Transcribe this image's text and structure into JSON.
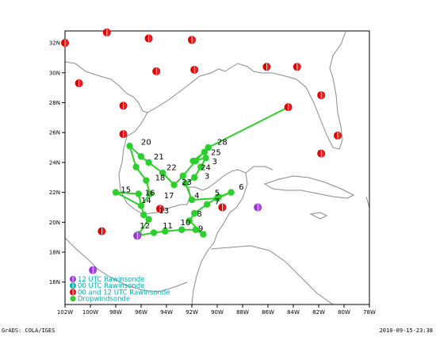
{
  "map": {
    "lon_ticks": [
      "102W",
      "100W",
      "98W",
      "96W",
      "94W",
      "92W",
      "90W",
      "88W",
      "86W",
      "84W",
      "82W",
      "80W",
      "78W"
    ],
    "lat_ticks": [
      "32N",
      "30N",
      "28N",
      "26N",
      "24N",
      "22N",
      "20N",
      "18N",
      "16N"
    ],
    "lon_range": [
      -102,
      -78
    ],
    "lat_range": [
      14.5,
      32.8
    ],
    "colors": {
      "land_outline": "#8a8a8a",
      "rawinsonde_12": "#9b30d8",
      "rawinsonde_00": "#00b0b0",
      "rawinsonde_both": "#e00000",
      "dropwindsonde": "#2ccf2c",
      "track": "#2ccf2c",
      "legend_text": "#00b0b0"
    },
    "legend": [
      {
        "label": "12 UTC Rawinsonde",
        "color": "#9b30d8",
        "type": "half"
      },
      {
        "label": "00 UTC Rawinsonde",
        "color": "#00b0b0",
        "type": "half"
      },
      {
        "label": "00 and 12 UTC Rawinsonde",
        "color": "#e00000",
        "type": "half"
      },
      {
        "label": "Dropwindsonde",
        "color": "#2ccf2c",
        "type": "full"
      }
    ],
    "rawinsondes": [
      {
        "lon": -102.0,
        "lat": 32.0,
        "type": "both"
      },
      {
        "lon": -98.7,
        "lat": 32.7,
        "type": "both"
      },
      {
        "lon": -95.4,
        "lat": 32.3,
        "type": "both"
      },
      {
        "lon": -92.0,
        "lat": 32.2,
        "type": "both"
      },
      {
        "lon": -100.9,
        "lat": 29.3,
        "type": "both"
      },
      {
        "lon": -94.8,
        "lat": 30.1,
        "type": "both"
      },
      {
        "lon": -91.8,
        "lat": 30.2,
        "type": "both"
      },
      {
        "lon": -86.1,
        "lat": 30.4,
        "type": "both"
      },
      {
        "lon": -83.7,
        "lat": 30.4,
        "type": "both"
      },
      {
        "lon": -81.8,
        "lat": 28.5,
        "type": "both"
      },
      {
        "lon": -97.4,
        "lat": 27.8,
        "type": "both"
      },
      {
        "lon": -84.4,
        "lat": 27.7,
        "type": "both"
      },
      {
        "lon": -97.4,
        "lat": 25.9,
        "type": "both"
      },
      {
        "lon": -80.5,
        "lat": 25.8,
        "type": "both"
      },
      {
        "lon": -81.8,
        "lat": 24.6,
        "type": "both"
      },
      {
        "lon": -89.6,
        "lat": 21.0,
        "type": "both"
      },
      {
        "lon": -94.5,
        "lat": 20.9,
        "type": "both"
      },
      {
        "lon": -99.1,
        "lat": 19.4,
        "type": "both"
      },
      {
        "lon": -86.8,
        "lat": 21.0,
        "type": "12"
      },
      {
        "lon": -96.3,
        "lat": 19.1,
        "type": "12"
      },
      {
        "lon": -99.8,
        "lat": 16.8,
        "type": "12"
      }
    ],
    "drop_labels": [
      {
        "text": "20",
        "lon": -96.0,
        "lat": 25.2
      },
      {
        "text": "28",
        "lon": -90.0,
        "lat": 25.2
      },
      {
        "text": "21",
        "lon": -95.0,
        "lat": 24.2
      },
      {
        "text": "25",
        "lon": -90.5,
        "lat": 24.5
      },
      {
        "text": "22",
        "lon": -94.0,
        "lat": 23.5
      },
      {
        "text": "3",
        "lon": -90.4,
        "lat": 23.9
      },
      {
        "text": "24",
        "lon": -91.3,
        "lat": 23.5
      },
      {
        "text": "18",
        "lon": -94.9,
        "lat": 22.8
      },
      {
        "text": "23",
        "lon": -92.8,
        "lat": 22.5
      },
      {
        "text": "3",
        "lon": -91.0,
        "lat": 22.9
      },
      {
        "text": "15",
        "lon": -97.6,
        "lat": 22.0
      },
      {
        "text": "16",
        "lon": -95.7,
        "lat": 21.8
      },
      {
        "text": "17",
        "lon": -94.2,
        "lat": 21.6
      },
      {
        "text": "4",
        "lon": -91.8,
        "lat": 21.6
      },
      {
        "text": "5",
        "lon": -90.2,
        "lat": 21.8
      },
      {
        "text": "6",
        "lon": -88.3,
        "lat": 22.2
      },
      {
        "text": "14",
        "lon": -96.0,
        "lat": 21.3
      },
      {
        "text": "7",
        "lon": -90.2,
        "lat": 21.2
      },
      {
        "text": "13",
        "lon": -94.6,
        "lat": 20.6
      },
      {
        "text": "8",
        "lon": -91.6,
        "lat": 20.4
      },
      {
        "text": "12",
        "lon": -96.1,
        "lat": 19.6
      },
      {
        "text": "11",
        "lon": -94.3,
        "lat": 19.6
      },
      {
        "text": "10",
        "lon": -92.9,
        "lat": 19.8
      },
      {
        "text": "9",
        "lon": -91.5,
        "lat": 19.4
      }
    ],
    "drop_track": [
      [
        -96.3,
        19.1
      ],
      [
        -95.0,
        19.3
      ],
      [
        -94.1,
        19.4
      ],
      [
        -92.8,
        19.5
      ],
      [
        -91.7,
        19.5
      ],
      [
        -91.1,
        19.2
      ],
      [
        -92.2,
        20.1
      ],
      [
        -91.8,
        20.6
      ],
      [
        -90.8,
        21.2
      ],
      [
        -89.9,
        21.7
      ],
      [
        -88.9,
        22.0
      ],
      [
        -90.0,
        21.6
      ],
      [
        -92.0,
        21.5
      ],
      [
        -92.5,
        22.6
      ],
      [
        -91.8,
        23.0
      ],
      [
        -91.3,
        23.7
      ],
      [
        -90.9,
        24.3
      ],
      [
        -91.9,
        24.1
      ],
      [
        -91.0,
        24.7
      ],
      [
        -90.7,
        25.0
      ],
      [
        -84.4,
        27.7
      ],
      [
        -90.7,
        25.0
      ],
      [
        -91.7,
        24.1
      ],
      [
        -92.7,
        23.1
      ],
      [
        -93.4,
        22.5
      ],
      [
        -94.3,
        23.3
      ],
      [
        -95.4,
        24.0
      ],
      [
        -96.0,
        24.4
      ],
      [
        -96.9,
        25.1
      ],
      [
        -96.4,
        23.7
      ],
      [
        -95.6,
        22.8
      ],
      [
        -95.3,
        21.9
      ],
      [
        -96.0,
        21.1
      ],
      [
        -98.0,
        22.0
      ],
      [
        -96.2,
        21.9
      ],
      [
        -95.8,
        20.5
      ],
      [
        -95.4,
        20.2
      ],
      [
        -96.2,
        19.2
      ],
      [
        -96.3,
        19.1
      ]
    ]
  },
  "footer": {
    "left": "GrADS: COLA/IGES",
    "right": "2010-09-15-23:38"
  }
}
